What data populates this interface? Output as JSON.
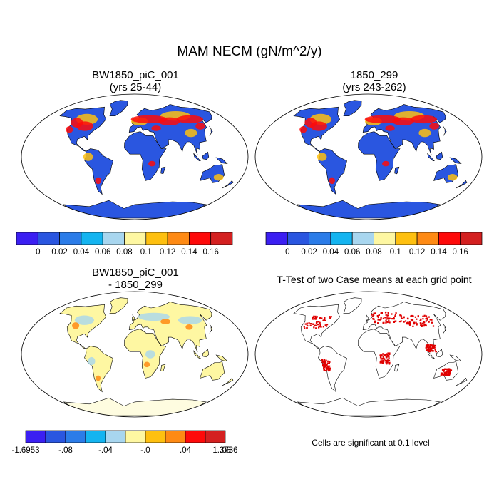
{
  "title": "MAM NECM (gN/m^2/y)",
  "panels": [
    {
      "id": "p1",
      "title_line1": "BW1850_piC_001",
      "title_line2": "(yrs 25-44)",
      "fill": "base"
    },
    {
      "id": "p2",
      "title_line1": "1850_299",
      "title_line2": "(yrs 243-262)",
      "fill": "base"
    },
    {
      "id": "p3",
      "title_line1": "BW1850_piC_001",
      "title_line2": "- 1850_299",
      "fill": "diff"
    },
    {
      "id": "p4",
      "title_line1": "T-Test of two Case means at each grid point",
      "title_line2": "",
      "fill": "ttest"
    }
  ],
  "colorbar_top": {
    "colors": [
      "#3b1ff2",
      "#2a56e0",
      "#2b7ce8",
      "#14b4f0",
      "#a8d6ef",
      "#fef7a2",
      "#fec010",
      "#fe8a14",
      "#fe0a0a",
      "#d42020"
    ],
    "labels": [
      "0",
      "0.02",
      "0.04",
      "0.06",
      "0.08",
      "0.1",
      "0.12",
      "0.14",
      "0.16"
    ]
  },
  "colorbar_diff": {
    "colors": [
      "#3b1ff2",
      "#2a56e0",
      "#2b7ce8",
      "#14b4f0",
      "#a8d6ef",
      "#fef7a2",
      "#fec010",
      "#fe8a14",
      "#fe0a0a",
      "#d42020"
    ],
    "labels": [
      "-1.6953",
      "-.08",
      "-.04",
      "-.0",
      ".04",
      ".08",
      "1.3736"
    ]
  },
  "significance_note": "Cells are significant at 0.1 level",
  "colors": {
    "land_base": "#2a56e0",
    "land_diff": "#fef7a2",
    "hot": "#fe0a0a",
    "warm": "#fec010",
    "sig": "#e00000"
  }
}
